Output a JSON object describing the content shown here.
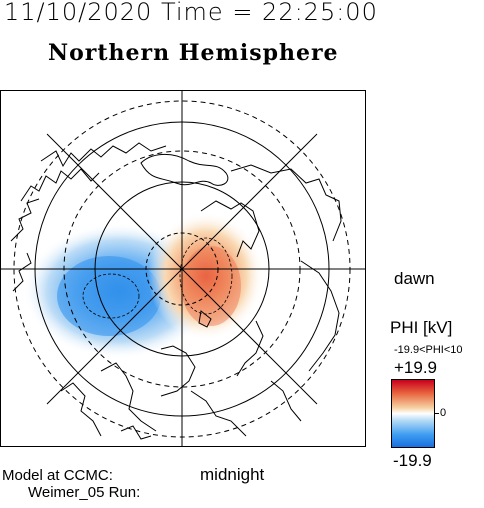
{
  "header": {
    "datetime": "11/10/2020 Time = 22:25:00"
  },
  "map": {
    "title": "Northern Hemisphere",
    "labels": {
      "dawn": "dawn",
      "midnight": "midnight"
    }
  },
  "model": {
    "line1": "Model at CCMC:",
    "line2": "Weimer_05 Run:"
  },
  "colorbar": {
    "title": "PHI [kV]",
    "range_text": "-19.9<PHI<10",
    "max_label": "+19.9",
    "mid_label": "0",
    "min_label": "-19.9",
    "colors": {
      "max": "#c8001e",
      "mid": "#ffffff",
      "min": "#1a6fe0"
    }
  }
}
